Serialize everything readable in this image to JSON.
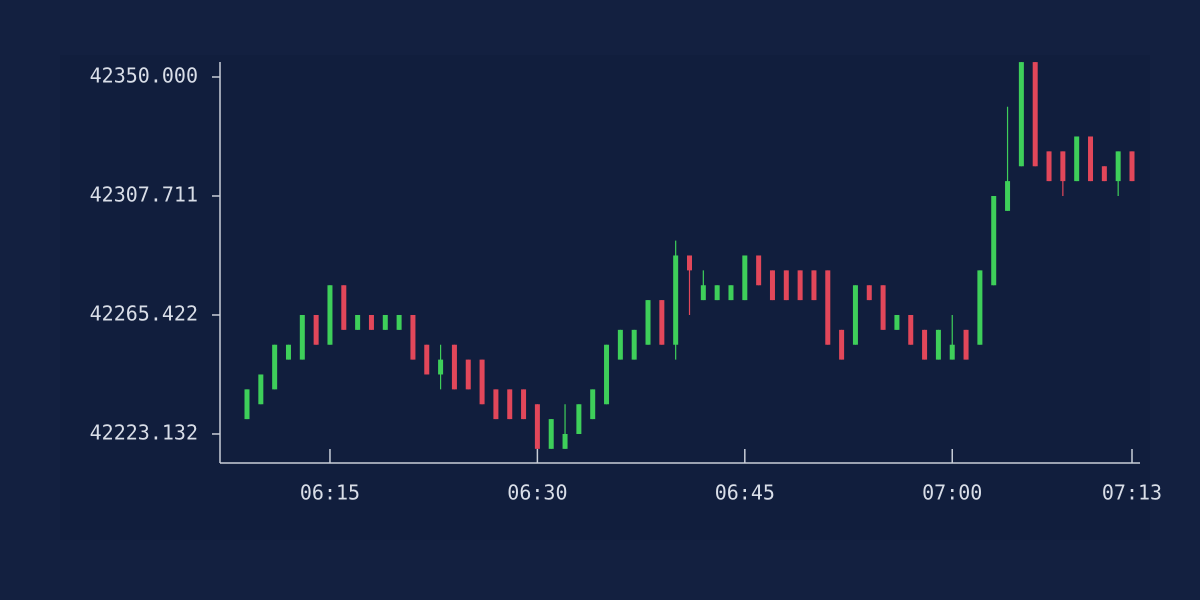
{
  "chart_data": {
    "type": "candlestick",
    "categories": [
      null,
      null,
      null,
      null,
      null,
      null,
      "06:15",
      null,
      null,
      null,
      null,
      null,
      null,
      null,
      null,
      null,
      null,
      null,
      null,
      null,
      null,
      "06:30",
      null,
      null,
      null,
      null,
      null,
      null,
      null,
      null,
      null,
      null,
      null,
      null,
      null,
      null,
      "06:45",
      null,
      null,
      null,
      null,
      null,
      null,
      null,
      null,
      null,
      null,
      null,
      null,
      null,
      null,
      "07:00",
      null,
      null,
      null,
      null,
      null,
      null,
      null,
      null,
      null,
      null,
      null,
      null,
      "07:13"
    ],
    "open": [
      42228.42,
      42233.7,
      42238.99,
      42249.56,
      42249.56,
      42265.42,
      42254.85,
      42275.99,
      42260.14,
      42265.42,
      42260.14,
      42260.14,
      42265.42,
      42254.85,
      42244.28,
      42254.85,
      42249.56,
      42249.56,
      42238.99,
      42238.99,
      42238.99,
      42233.7,
      42217.85,
      42217.85,
      42223.13,
      42228.42,
      42233.7,
      42249.56,
      42249.56,
      42254.85,
      42270.71,
      42254.85,
      42286.57,
      42270.71,
      42270.71,
      42270.71,
      42270.71,
      42286.57,
      42281.28,
      42281.28,
      42281.28,
      42281.28,
      42281.28,
      42260.14,
      42254.85,
      42275.99,
      42275.99,
      42260.14,
      42265.42,
      42260.14,
      42249.56,
      42249.56,
      42260.14,
      42254.85,
      42275.99,
      42302.42,
      42318.28,
      42355.29,
      42323.57,
      42323.57,
      42313.0,
      42328.86,
      42318.28,
      42313.0,
      42323.57
    ],
    "high": [
      42238.99,
      42244.28,
      42254.85,
      42254.85,
      42265.42,
      42265.42,
      42275.99,
      42275.99,
      42265.42,
      42265.42,
      42265.42,
      42265.42,
      42265.42,
      42254.85,
      42254.85,
      42254.85,
      42249.56,
      42249.56,
      42238.99,
      42238.99,
      42238.99,
      42233.7,
      42228.42,
      42233.7,
      42233.7,
      42238.99,
      42254.85,
      42260.14,
      42260.14,
      42270.71,
      42270.71,
      42291.85,
      42286.57,
      42281.28,
      42275.99,
      42275.99,
      42286.57,
      42286.57,
      42281.28,
      42281.28,
      42281.28,
      42281.28,
      42281.28,
      42260.14,
      42275.99,
      42275.99,
      42275.99,
      42265.42,
      42265.42,
      42260.14,
      42260.14,
      42265.42,
      42260.14,
      42281.28,
      42307.71,
      42339.43,
      42355.29,
      42355.29,
      42323.57,
      42323.57,
      42328.86,
      42328.86,
      42318.28,
      42323.57,
      42323.57
    ],
    "low": [
      42228.42,
      42233.7,
      42238.99,
      42249.56,
      42249.56,
      42254.85,
      42254.85,
      42260.14,
      42260.14,
      42260.14,
      42260.14,
      42260.14,
      42249.56,
      42244.28,
      42238.99,
      42238.99,
      42238.99,
      42233.7,
      42228.42,
      42228.42,
      42228.42,
      42217.85,
      42217.85,
      42217.85,
      42223.13,
      42228.42,
      42233.7,
      42249.56,
      42249.56,
      42254.85,
      42254.85,
      42249.56,
      42265.42,
      42270.71,
      42270.71,
      42270.71,
      42270.71,
      42275.99,
      42270.71,
      42270.71,
      42270.71,
      42270.71,
      42254.85,
      42249.56,
      42254.85,
      42270.71,
      42260.14,
      42260.14,
      42254.85,
      42249.56,
      42249.56,
      42249.56,
      42249.56,
      42254.85,
      42275.99,
      42302.42,
      42318.28,
      42318.28,
      42313.0,
      42307.71,
      42313.0,
      42313.0,
      42313.0,
      42307.71,
      42313.0
    ],
    "close": [
      42238.99,
      42244.28,
      42254.85,
      42254.85,
      42265.42,
      42254.85,
      42275.99,
      42260.14,
      42265.42,
      42260.14,
      42265.42,
      42265.42,
      42249.56,
      42244.28,
      42249.56,
      42238.99,
      42238.99,
      42233.7,
      42228.42,
      42228.42,
      42228.42,
      42217.85,
      42228.42,
      42223.13,
      42233.7,
      42238.99,
      42254.85,
      42260.14,
      42260.14,
      42270.71,
      42254.85,
      42286.57,
      42281.28,
      42275.99,
      42275.99,
      42275.99,
      42286.57,
      42275.99,
      42270.71,
      42270.71,
      42270.71,
      42270.71,
      42254.85,
      42249.56,
      42275.99,
      42270.71,
      42260.14,
      42265.42,
      42254.85,
      42249.56,
      42260.14,
      42254.85,
      42249.56,
      42281.28,
      42307.71,
      42313.0,
      42355.29,
      42318.28,
      42313.0,
      42313.0,
      42328.86,
      42313.0,
      42313.0,
      42323.57,
      42313.0
    ],
    "up_color": "#3ecf5a",
    "down_color": "#e2475a",
    "ylim": [
      42212.82,
      42355.33
    ],
    "yticks": [
      42223.132,
      42265.422,
      42307.711,
      {
        "value": 42350,
        "label": "42350.000"
      }
    ]
  }
}
